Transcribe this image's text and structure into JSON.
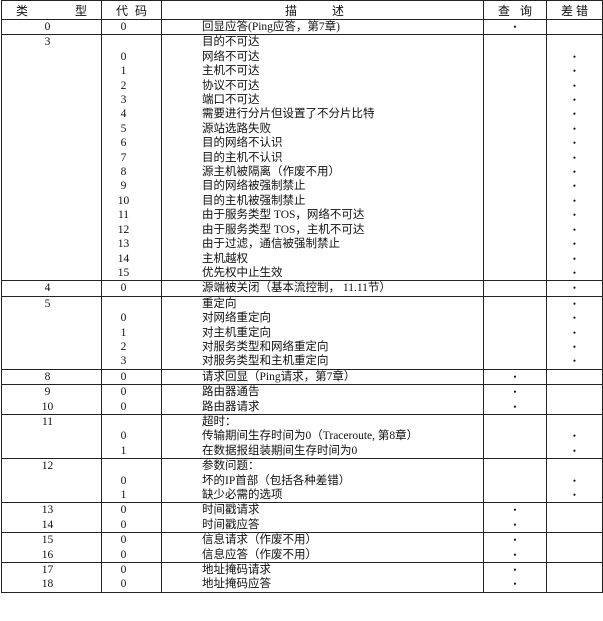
{
  "header": {
    "type": [
      "类",
      "型"
    ],
    "code": [
      "代",
      "码"
    ],
    "desc": "描 述",
    "query": [
      "查",
      "询"
    ],
    "error": [
      "差",
      "错"
    ]
  },
  "bullet": "•",
  "groups": [
    {
      "rows": [
        {
          "type": "0",
          "code": "0",
          "desc": "回显应答(Ping应答，第7章)",
          "query": true,
          "error": false
        }
      ]
    },
    {
      "rows": [
        {
          "type": "3",
          "code": "",
          "desc": "目的不可达",
          "query": false,
          "error": false
        },
        {
          "type": "",
          "code": "0",
          "desc": "网络不可达",
          "query": false,
          "error": true
        },
        {
          "type": "",
          "code": "1",
          "desc": "主机不可达",
          "query": false,
          "error": true
        },
        {
          "type": "",
          "code": "2",
          "desc": "协议不可达",
          "query": false,
          "error": true
        },
        {
          "type": "",
          "code": "3",
          "desc": "端口不可达",
          "query": false,
          "error": true
        },
        {
          "type": "",
          "code": "4",
          "desc": "需要进行分片但设置了不分片比特",
          "query": false,
          "error": true
        },
        {
          "type": "",
          "code": "5",
          "desc": "源站选路失败",
          "query": false,
          "error": true
        },
        {
          "type": "",
          "code": "6",
          "desc": "目的网络不认识",
          "query": false,
          "error": true
        },
        {
          "type": "",
          "code": "7",
          "desc": "目的主机不认识",
          "query": false,
          "error": true
        },
        {
          "type": "",
          "code": "8",
          "desc": "源主机被隔离（作废不用）",
          "query": false,
          "error": true
        },
        {
          "type": "",
          "code": "9",
          "desc": "目的网络被强制禁止",
          "query": false,
          "error": true
        },
        {
          "type": "",
          "code": "10",
          "desc": "目的主机被强制禁止",
          "query": false,
          "error": true
        },
        {
          "type": "",
          "code": "11",
          "desc": "由于服务类型 TOS，网络不可达",
          "query": false,
          "error": true
        },
        {
          "type": "",
          "code": "12",
          "desc": "由于服务类型 TOS，主机不可达",
          "query": false,
          "error": true
        },
        {
          "type": "",
          "code": "13",
          "desc": "由于过滤，通信被强制禁止",
          "query": false,
          "error": true
        },
        {
          "type": "",
          "code": "14",
          "desc": "主机越权",
          "query": false,
          "error": true
        },
        {
          "type": "",
          "code": "15",
          "desc": "优先权中止生效",
          "query": false,
          "error": true
        }
      ]
    },
    {
      "rows": [
        {
          "type": "4",
          "code": "0",
          "desc": "源端被关闭（基本流控制， 11.11节）",
          "query": false,
          "error": true
        }
      ]
    },
    {
      "rows": [
        {
          "type": "5",
          "code": "",
          "desc": "重定向",
          "query": false,
          "error": true
        },
        {
          "type": "",
          "code": "0",
          "desc": "对网络重定向",
          "query": false,
          "error": true
        },
        {
          "type": "",
          "code": "1",
          "desc": "对主机重定向",
          "query": false,
          "error": true
        },
        {
          "type": "",
          "code": "2",
          "desc": "对服务类型和网络重定向",
          "query": false,
          "error": true
        },
        {
          "type": "",
          "code": "3",
          "desc": "对服务类型和主机重定向",
          "query": false,
          "error": true
        }
      ]
    },
    {
      "rows": [
        {
          "type": "8",
          "code": "0",
          "desc": "请求回显（Ping请求，第7章）",
          "query": true,
          "error": false
        }
      ]
    },
    {
      "rows": [
        {
          "type": "9",
          "code": "0",
          "desc": "路由器通告",
          "query": true,
          "error": false
        },
        {
          "type": "10",
          "code": "0",
          "desc": "路由器请求",
          "query": true,
          "error": false
        }
      ]
    },
    {
      "rows": [
        {
          "type": "11",
          "code": "",
          "desc": "超时：",
          "query": false,
          "error": false
        },
        {
          "type": "",
          "code": "0",
          "desc": "传输期间生存时间为0（Traceroute, 第8章）",
          "query": false,
          "error": true
        },
        {
          "type": "",
          "code": "1",
          "desc": "在数据报组装期间生存时间为0",
          "query": false,
          "error": true
        }
      ]
    },
    {
      "rows": [
        {
          "type": "12",
          "code": "",
          "desc": "参数问题：",
          "query": false,
          "error": false
        },
        {
          "type": "",
          "code": "0",
          "desc": "坏的IP首部（包括各种差错）",
          "query": false,
          "error": true
        },
        {
          "type": "",
          "code": "1",
          "desc": "缺少必需的选项",
          "query": false,
          "error": true
        }
      ]
    },
    {
      "rows": [
        {
          "type": "13",
          "code": "0",
          "desc": "时间戳请求",
          "query": true,
          "error": false
        },
        {
          "type": "14",
          "code": "0",
          "desc": "时间戳应答",
          "query": true,
          "error": false
        }
      ]
    },
    {
      "rows": [
        {
          "type": "15",
          "code": "0",
          "desc": "信息请求（作废不用）",
          "query": true,
          "error": false
        },
        {
          "type": "16",
          "code": "0",
          "desc": "信息应答（作废不用）",
          "query": true,
          "error": false
        }
      ]
    },
    {
      "rows": [
        {
          "type": "17",
          "code": "0",
          "desc": "地址掩码请求",
          "query": true,
          "error": false
        },
        {
          "type": "18",
          "code": "0",
          "desc": "地址掩码应答",
          "query": true,
          "error": false
        }
      ]
    }
  ]
}
